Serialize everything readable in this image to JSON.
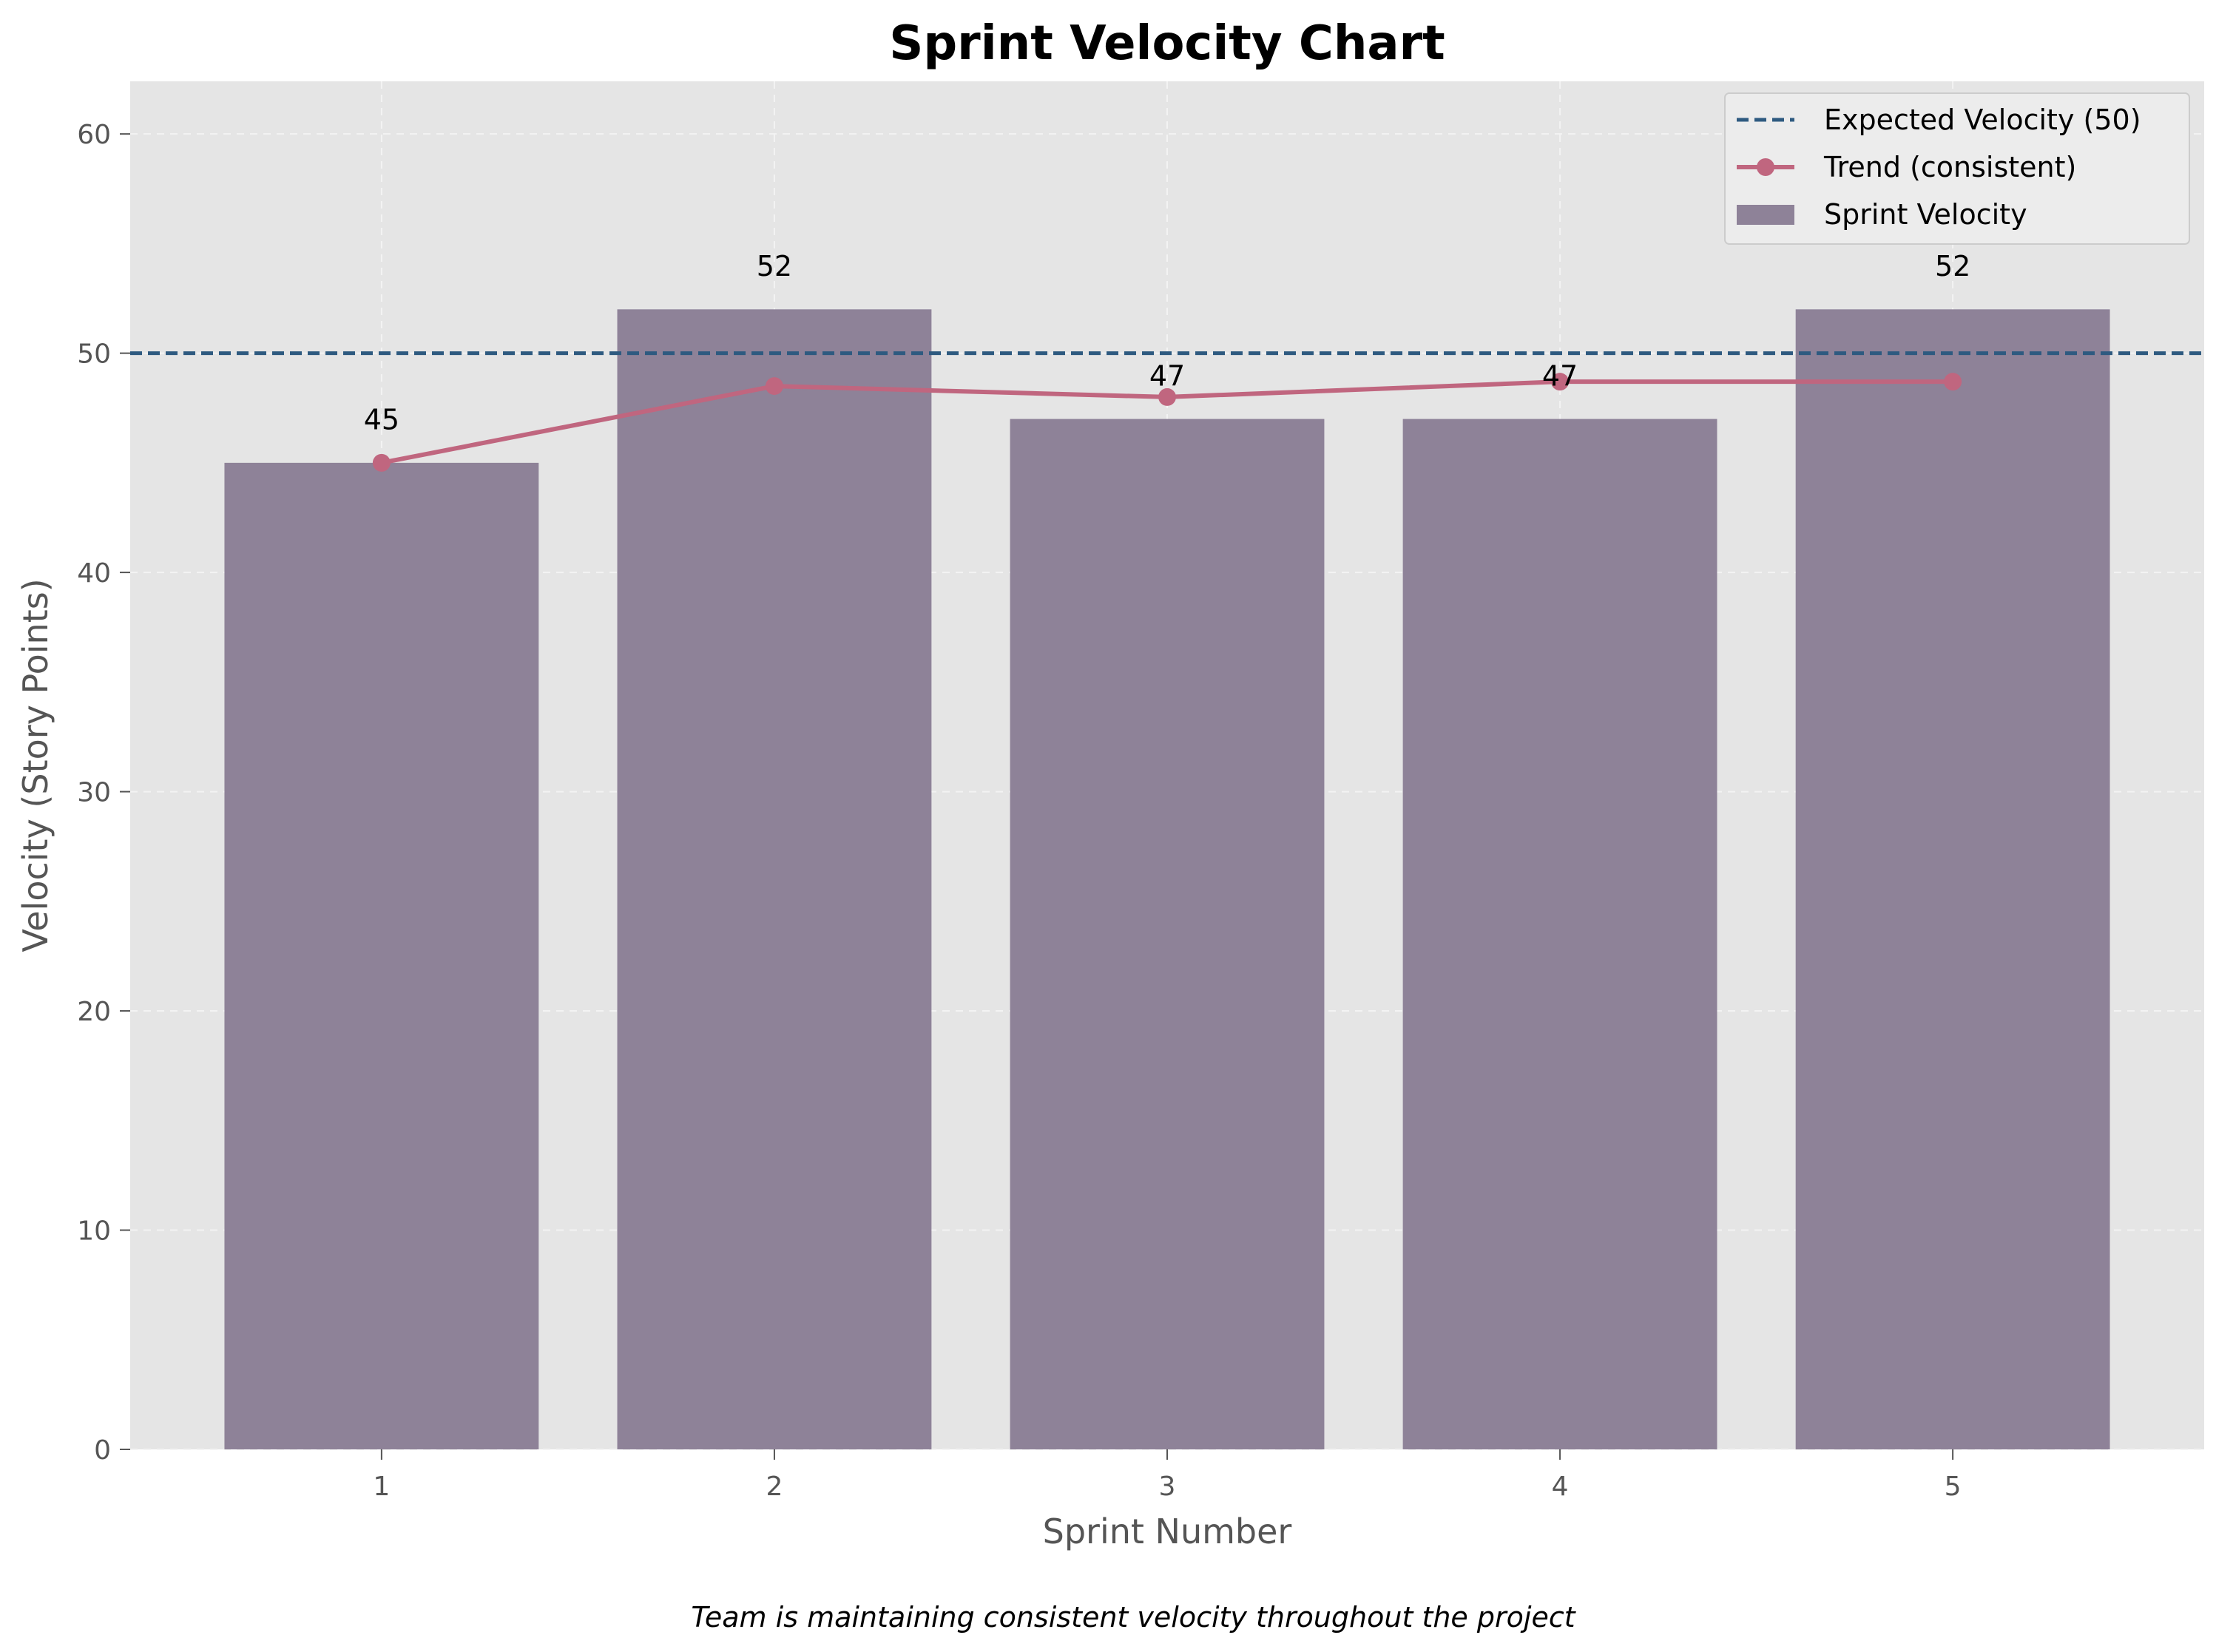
{
  "chart_data": {
    "type": "bar",
    "title": "Sprint Velocity Chart",
    "xlabel": "Sprint Number",
    "ylabel": "Velocity (Story Points)",
    "caption": "Team is maintaining consistent velocity throughout the project",
    "categories": [
      "1",
      "2",
      "3",
      "4",
      "5"
    ],
    "ylim": [
      0,
      62.4
    ],
    "yticks": [
      0,
      10,
      20,
      30,
      40,
      50,
      60
    ],
    "grid": true,
    "legend_position": "top-right",
    "series": [
      {
        "name": "Sprint Velocity",
        "type": "bar",
        "values": [
          45,
          52,
          47,
          47,
          52
        ],
        "color": "#8e8298"
      },
      {
        "name": "Trend (consistent)",
        "type": "line",
        "values": [
          45,
          48.5,
          48,
          48.7,
          48.7
        ],
        "color": "#c0667f"
      }
    ],
    "reference_line": {
      "name": "Expected Velocity (50)",
      "value": 50,
      "color": "#2e5a80"
    },
    "data_labels": [
      "45",
      "52",
      "47",
      "47",
      "52"
    ],
    "colors": {
      "plot_background": "#e5e5e5",
      "grid": "#f3f3f3"
    }
  }
}
